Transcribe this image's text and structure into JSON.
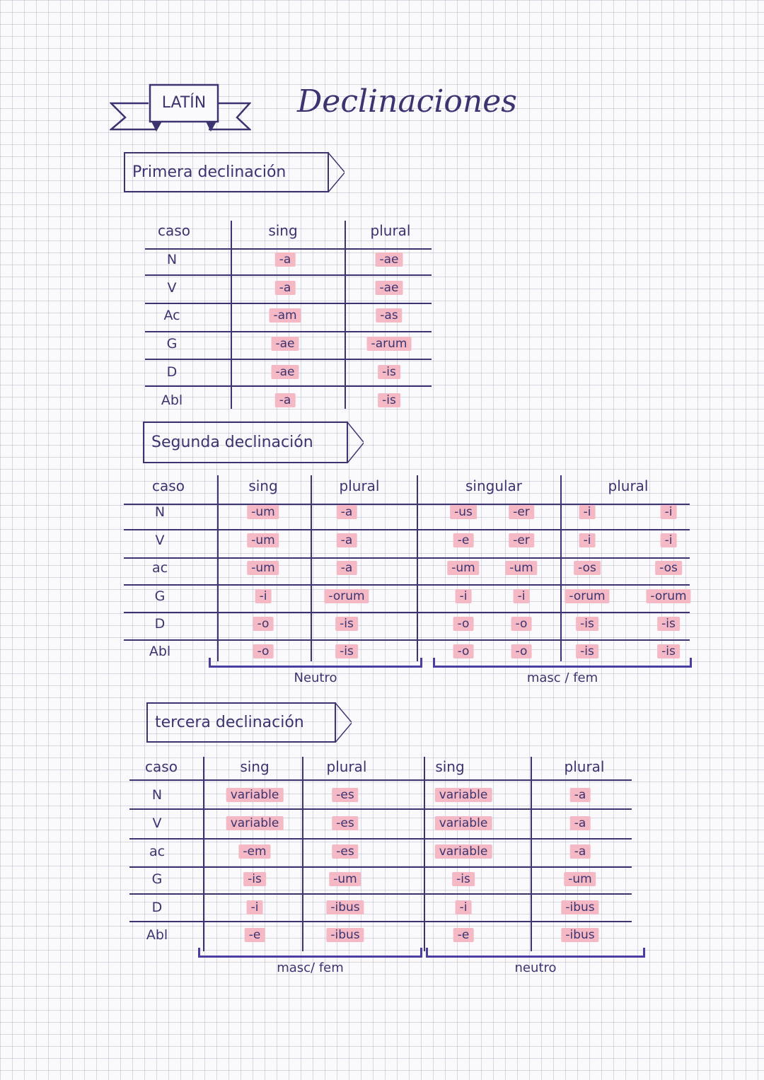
{
  "header": {
    "tag": "LATÍN",
    "title": "Declinaciones"
  },
  "primera": {
    "title": "Primera declinación",
    "headers": [
      "caso",
      "sing",
      "plural"
    ],
    "rows": [
      [
        "N",
        "-a",
        "-ae"
      ],
      [
        "V",
        "-a",
        "-ae"
      ],
      [
        "Ac",
        "-am",
        "-as"
      ],
      [
        "G",
        "-ae",
        "-arum"
      ],
      [
        "D",
        "-ae",
        "-is"
      ],
      [
        "Abl",
        "-a",
        "-is"
      ]
    ]
  },
  "segunda": {
    "title": "Segunda declinación",
    "headers": [
      "caso",
      "sing",
      "plural",
      "singular",
      "plural"
    ],
    "rows": [
      [
        "N",
        "-um",
        "-a",
        "-us",
        "-er",
        "-i",
        "-i"
      ],
      [
        "V",
        "-um",
        "-a",
        "-e",
        "-er",
        "-i",
        "-i"
      ],
      [
        "ac",
        "-um",
        "-a",
        "-um",
        "-um",
        "-os",
        "-os"
      ],
      [
        "G",
        "-i",
        "-orum",
        "-i",
        "-i",
        "-orum",
        "-orum"
      ],
      [
        "D",
        "-o",
        "-is",
        "-o",
        "-o",
        "-is",
        "-is"
      ],
      [
        "Abl",
        "-o",
        "-is",
        "-o",
        "-o",
        "-is",
        "-is"
      ]
    ],
    "groups": [
      "Neutro",
      "masc / fem"
    ]
  },
  "tercera": {
    "title": "tercera declinación",
    "headers": [
      "caso",
      "sing",
      "plural",
      "sing",
      "plural"
    ],
    "rows": [
      [
        "N",
        "variable",
        "-es",
        "variable",
        "-a"
      ],
      [
        "V",
        "variable",
        "-es",
        "variable",
        "-a"
      ],
      [
        "ac",
        "-em",
        "-es",
        "variable",
        "-a"
      ],
      [
        "G",
        "-is",
        "-um",
        "-is",
        "-um"
      ],
      [
        "D",
        "-i",
        "-ibus",
        "-i",
        "-ibus"
      ],
      [
        "Abl",
        "-e",
        "-ibus",
        "-e",
        "-ibus"
      ]
    ],
    "groups": [
      "masc/ fem",
      "neutro"
    ]
  },
  "colors": {
    "ink": "#3b3470",
    "highlight": "#f4b9c4",
    "bracket": "#4a3fa0"
  }
}
